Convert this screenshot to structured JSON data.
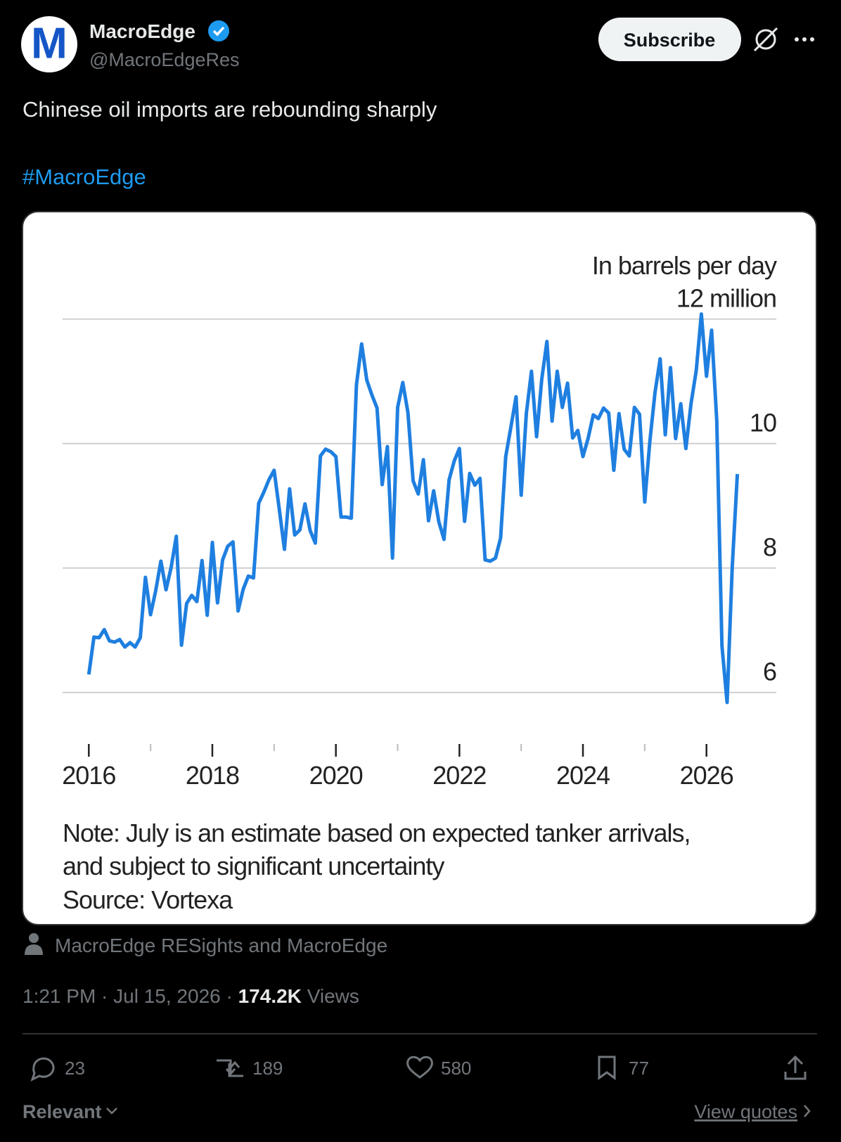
{
  "tweet": {
    "author_name": "MacroEdge",
    "handle": "@MacroEdgeRes",
    "avatar_letter": "M",
    "subscribe": "Subscribe",
    "text": "Chinese oil imports are rebounding sharply",
    "hashtag": "#MacroEdge",
    "attribution": "MacroEdge RESights and MacroEdge",
    "timestamp": "1:21 PM · Jul 15, 2026 ·",
    "views_count": "174.2K",
    "views_label": "Views",
    "replies": 23,
    "reposts": 189,
    "likes": 580,
    "bookmarks": 77,
    "sort": "Relevant",
    "view_quotes": "View quotes"
  },
  "chart_data": {
    "type": "line",
    "y_label": "In barrels per day",
    "color": "#1f7fe0",
    "notes": [
      "Note: July is an estimate based on expected tanker arrivals,",
      "and subject to significant uncertainty"
    ],
    "source": "Source: Vortexa",
    "categories": [
      "2016",
      null,
      null,
      null,
      null,
      null,
      null,
      null,
      null,
      null,
      null,
      null,
      null,
      null,
      null,
      null,
      null,
      null,
      null,
      null,
      null,
      null,
      null,
      null,
      "2018",
      null,
      null,
      null,
      null,
      null,
      null,
      null,
      null,
      null,
      null,
      null,
      null,
      null,
      null,
      null,
      null,
      null,
      null,
      null,
      null,
      null,
      null,
      null,
      "2020",
      null,
      null,
      null,
      null,
      null,
      null,
      null,
      null,
      null,
      null,
      null,
      null,
      null,
      null,
      null,
      null,
      null,
      null,
      null,
      null,
      null,
      null,
      null,
      "2022",
      null,
      null,
      null,
      null,
      null,
      null,
      null,
      null,
      null,
      null,
      null,
      null,
      null,
      null,
      null,
      null,
      null,
      null,
      null,
      null,
      null,
      null,
      null,
      "2024",
      null,
      null,
      null,
      null,
      null,
      null,
      null,
      null,
      null,
      null,
      null,
      null,
      null,
      null,
      null,
      null,
      null,
      null,
      null,
      null,
      null,
      null,
      null,
      "2026",
      null,
      null,
      null,
      null,
      null,
      null
    ],
    "values": [
      6.29,
      6.89,
      6.88,
      7.01,
      6.83,
      6.81,
      6.85,
      6.73,
      6.8,
      6.73,
      6.88,
      7.85,
      7.25,
      7.64,
      8.11,
      7.65,
      8.01,
      8.51,
      6.76,
      7.43,
      7.56,
      7.46,
      8.12,
      7.24,
      8.41,
      7.44,
      8.13,
      8.35,
      8.42,
      7.31,
      7.66,
      7.87,
      7.84,
      9.04,
      9.22,
      9.42,
      9.57,
      8.95,
      8.3,
      9.27,
      8.53,
      8.61,
      9.03,
      8.6,
      8.4,
      9.8,
      9.91,
      9.87,
      9.79,
      8.82,
      8.82,
      8.8,
      10.94,
      11.6,
      11.02,
      10.78,
      10.57,
      9.34,
      9.95,
      8.16,
      10.58,
      10.98,
      10.5,
      9.4,
      9.19,
      9.74,
      8.76,
      9.24,
      8.74,
      8.46,
      9.42,
      9.72,
      9.92,
      8.75,
      9.52,
      9.33,
      9.44,
      8.13,
      8.11,
      8.16,
      8.48,
      9.79,
      10.26,
      10.75,
      9.17,
      10.48,
      11.16,
      10.11,
      11.04,
      11.64,
      10.36,
      11.16,
      10.58,
      10.97,
      10.09,
      10.21,
      9.79,
      10.08,
      10.46,
      10.4,
      10.57,
      10.49,
      9.57,
      10.48,
      9.91,
      9.8,
      10.58,
      10.47,
      9.06,
      10.04,
      10.82,
      11.36,
      10.14,
      11.22,
      10.08,
      10.64,
      9.92,
      10.64,
      11.17,
      12.08,
      11.08,
      11.82,
      10.37,
      6.75,
      5.84,
      8.01,
      9.51
    ],
    "ylim": [
      5.5,
      12.2
    ],
    "yticks": [
      6,
      8,
      10,
      {
        "value": 12,
        "label": "12 million"
      }
    ],
    "grid": true
  }
}
